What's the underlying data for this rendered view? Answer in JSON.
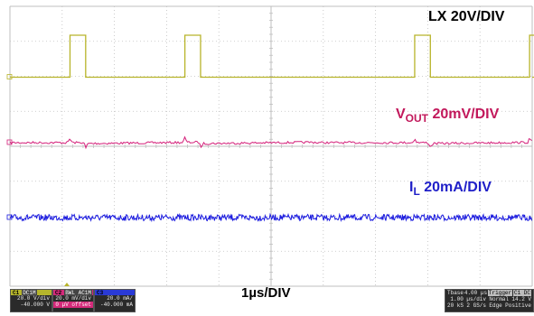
{
  "labels": {
    "lx": "LX 20V/DIV",
    "vout_main": "V",
    "vout_sub": "OUT",
    "vout_tail": " 20mV/DIV",
    "il_main": "I",
    "il_sub": "L",
    "il_tail": " 20mA/DIV",
    "timebase": "1µs/DIV"
  },
  "channels": [
    {
      "num": "C1",
      "flag": "DC1M",
      "scale": "20.0 V/div",
      "offset": "-40.000 V"
    },
    {
      "num": "C2",
      "flag": "BWL AC1M",
      "scale": "20.0 mV/div",
      "offset": "0 µV offset"
    },
    {
      "num": "C3",
      "flag": "",
      "scale": "20.0 mA/",
      "offset": "-40.000 mA"
    }
  ],
  "timebase_panel": {
    "row1": [
      "Tbase",
      "4.00 µs",
      "Trigger",
      "C1 DC"
    ],
    "row2": [
      "",
      "1.00 µs/div",
      "Normal",
      "14.2 V"
    ],
    "row3": [
      "20 kS",
      "2 GS/s",
      "Edge",
      "Positive"
    ]
  },
  "colors": {
    "lx": "#b8b42a",
    "vout": "#d4207a",
    "il": "#1a1adf",
    "grid": "#bfbfbf"
  },
  "waveforms": {
    "lx_low_v": 0,
    "lx_high_v": 40,
    "pulse_centers_div": [
      1.3,
      3.5,
      7.9,
      10.1
    ],
    "pulse_width_div": 0.3
  }
}
